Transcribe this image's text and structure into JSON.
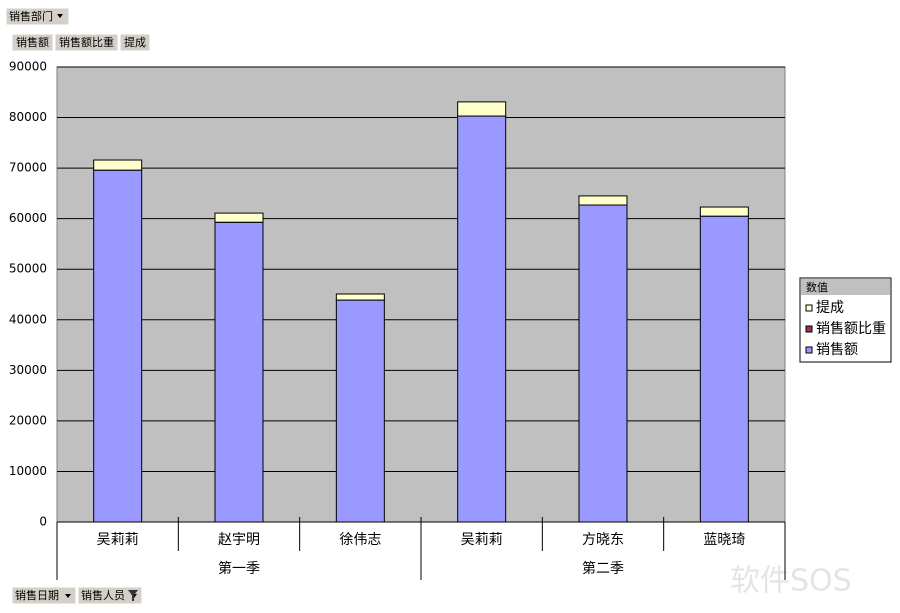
{
  "filter_fields": [
    "销售部门"
  ],
  "data_fields": [
    "销售额",
    "销售额比重",
    "提成"
  ],
  "row_fields": [
    "销售日期",
    "销售人员"
  ],
  "watermark": "软件SOS",
  "chart_data": {
    "type": "stacked-bar",
    "categories": [
      "吴莉莉",
      "赵宇明",
      "徐伟志",
      "吴莉莉",
      "方晓东",
      "蓝晓琦"
    ],
    "groups": [
      "第一季",
      "第一季",
      "第一季",
      "第二季",
      "第二季",
      "第二季"
    ],
    "legend_title": "数值",
    "series": [
      {
        "name": "销售额",
        "color": "#9999ff",
        "values": [
          69600,
          59300,
          43900,
          80300,
          62700,
          60500
        ]
      },
      {
        "name": "销售额比重",
        "color": "#993366",
        "values": [
          0.19,
          0.16,
          0.12,
          0.31,
          0.24,
          0.23
        ]
      },
      {
        "name": "提成",
        "color": "#ffffcc",
        "values": [
          2000,
          1800,
          1200,
          2800,
          1800,
          1800
        ]
      }
    ],
    "ylim": [
      0,
      90000
    ],
    "yticks": [
      0,
      10000,
      20000,
      30000,
      40000,
      50000,
      60000,
      70000,
      80000,
      90000
    ],
    "grid": true,
    "legend_position": "right"
  }
}
